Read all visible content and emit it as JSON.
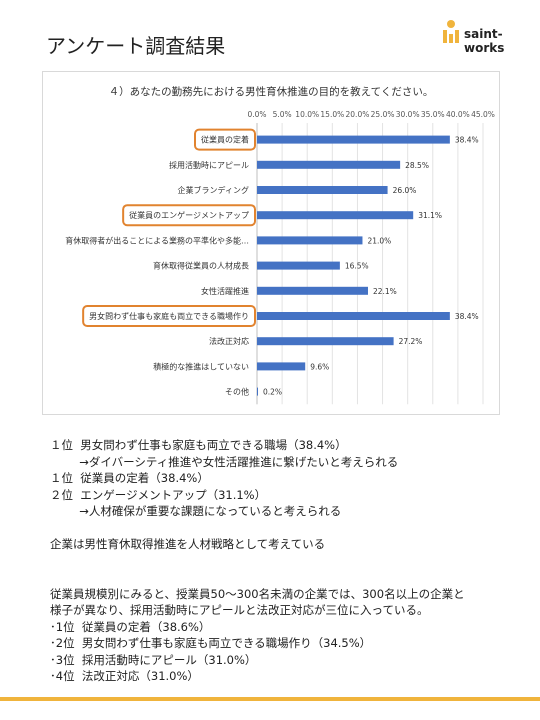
{
  "page": {
    "title": "アンケート調査結果",
    "logo_text": "saint-works",
    "accent_color": "#f0b43c",
    "highlight_color": "#e1832f",
    "bar_color": "#4472c4"
  },
  "chart_data": {
    "type": "bar",
    "orientation": "horizontal",
    "title": "４）あなたの勤務先における男性育休推進の目的を教えてください。",
    "categories": [
      "従業員の定着",
      "採用活動時にアピール",
      "企業ブランディング",
      "従業員のエンゲージメントアップ",
      "育休取得者が出ることによる業務の平準化や多能…",
      "育休取得従業員の人材成長",
      "女性活躍推進",
      "男女問わず仕事も家庭も両立できる職場作り",
      "法改正対応",
      "積極的な推進はしていない",
      "その他"
    ],
    "values": [
      38.4,
      28.5,
      26.0,
      31.1,
      21.0,
      16.5,
      22.1,
      38.4,
      27.2,
      9.6,
      0.2
    ],
    "data_labels": [
      "38.4%",
      "28.5%",
      "26.0%",
      "31.1%",
      "21.0%",
      "16.5%",
      "22.1%",
      "38.4%",
      "27.2%",
      "9.6%",
      "0.2%"
    ],
    "xlim": [
      0,
      45
    ],
    "x_ticks": [
      "0.0%",
      "5.0%",
      "10.0%",
      "15.0%",
      "20.0%",
      "25.0%",
      "30.0%",
      "35.0%",
      "40.0%",
      "45.0%"
    ],
    "x_axis_position": "top",
    "grid": true,
    "highlighted": [
      "従業員の定着",
      "従業員のエンゲージメントアップ",
      "男女問わず仕事も家庭も両立できる職場作り"
    ]
  },
  "notes": [
    "１位  男女問わず仕事も家庭も両立できる職場（38.4%）",
    "        →ダイバーシティ推進や女性活躍推進に繋げたいと考えられる",
    "１位  従業員の定着（38.4%）",
    "２位  エンゲージメントアップ（31.1%）",
    "        →人材確保が重要な課題になっていると考えられる",
    "",
    "企業は男性育休取得推進を人材戦略として考えている",
    "",
    "",
    "従業員規模別にみると、授業員50～300名未満の企業では、300名以上の企業と",
    "様子が異なり、採用活動時にアピールと法改正対応が三位に入っている。",
    "･1位  従業員の定着（38.6%）",
    "･2位  男女問わず仕事も家庭も両立できる職場作り（34.5%）",
    "･3位  採用活動時にアピール（31.0%）",
    "･4位  法改正対応（31.0%）"
  ]
}
